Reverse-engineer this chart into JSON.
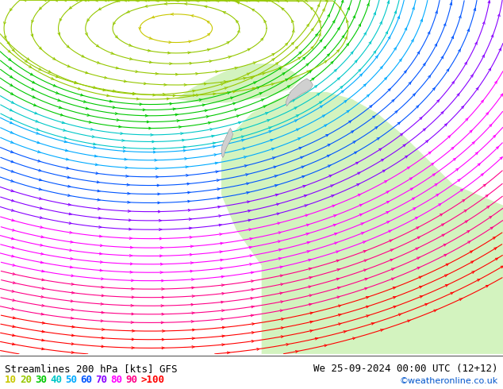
{
  "title_left": "Streamlines 200 hPa [kts] GFS",
  "title_right": "We 25-09-2024 00:00 UTC (12+12)",
  "credit": "©weatheronline.co.uk",
  "bg_color": "#e8e8e8",
  "legend_labels": [
    "10",
    "20",
    "30",
    "40",
    "50",
    "60",
    "70",
    "80",
    "90",
    ">100"
  ],
  "legend_colors": [
    "#c8c800",
    "#96c800",
    "#00c800",
    "#00c8c8",
    "#00aaff",
    "#0055ff",
    "#8800ff",
    "#ff00ff",
    "#ff0088",
    "#ff0000"
  ],
  "speed_thresholds": [
    10,
    20,
    30,
    40,
    50,
    60,
    70,
    80,
    90,
    100
  ],
  "speed_colors": [
    "#c8c800",
    "#96c800",
    "#00c800",
    "#00c8c8",
    "#00aaff",
    "#0055ff",
    "#8800ff",
    "#ff00ff",
    "#ff0088",
    "#ff0000"
  ],
  "title_fontsize": 9,
  "legend_fontsize": 9,
  "figsize": [
    6.34,
    4.9
  ],
  "dpi": 100
}
